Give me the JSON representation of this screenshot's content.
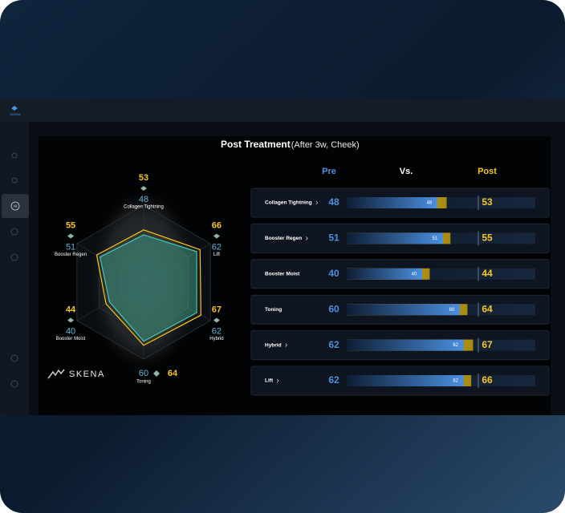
{
  "app": {
    "logo": "SKENA",
    "sidebar_active": "AI"
  },
  "panel": {
    "title": "Post Treatment",
    "subtitle": "(After 3w, Cheek)",
    "headers": {
      "pre": "Pre",
      "vs": "Vs.",
      "post": "Post"
    },
    "brand": "SKENA",
    "pre_color": "#4a8fe0",
    "post_color": "#f5c518",
    "items": [
      {
        "name": "Collagen Tightning",
        "pre": 48,
        "post": 53,
        "expandable": true
      },
      {
        "name": "Booster Regen",
        "pre": 51,
        "post": 55,
        "expandable": true
      },
      {
        "name": "Booster Moist",
        "pre": 40,
        "post": 44,
        "expandable": false
      },
      {
        "name": "Toning",
        "pre": 60,
        "post": 64,
        "expandable": false
      },
      {
        "name": "Hybrid",
        "pre": 62,
        "post": 67,
        "expandable": true
      },
      {
        "name": "Lift",
        "pre": 62,
        "post": 66,
        "expandable": true
      }
    ]
  }
}
